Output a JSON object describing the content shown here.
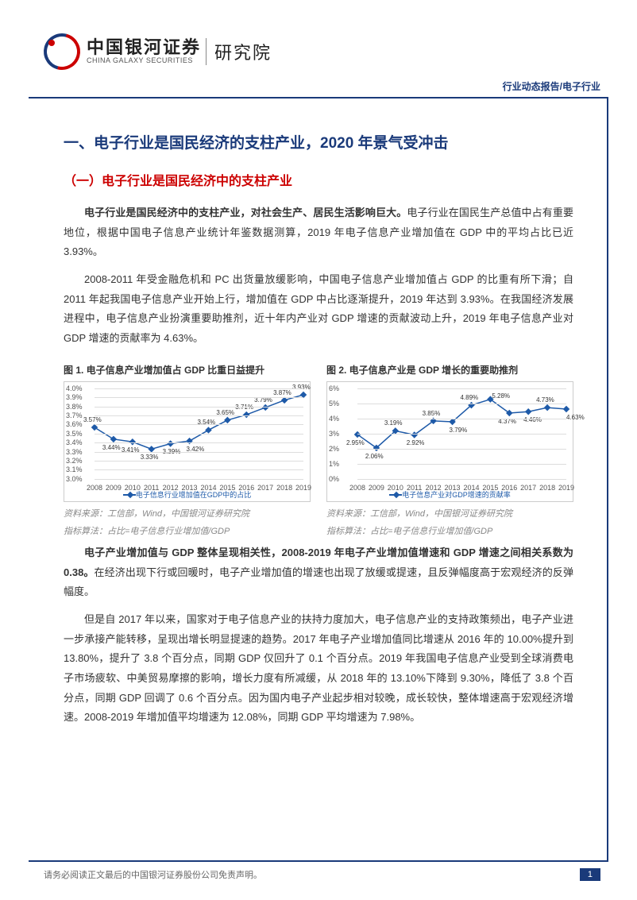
{
  "header": {
    "brand_cn": "中国银河证券",
    "brand_en": "CHINA GALAXY SECURITIES",
    "brand_suffix": "研究院",
    "breadcrumb": "行业动态报告/电子行业"
  },
  "section": {
    "h1": "一、电子行业是国民经济的支柱产业，2020 年景气受冲击",
    "h2": "（一）电子行业是国民经济中的支柱产业",
    "p1_bold": "电子行业是国民经济中的支柱产业，对社会生产、居民生活影响巨大。",
    "p1_rest": "电子行业在国民生产总值中占有重要地位，根据中国电子信息产业统计年鉴数据测算，2019 年电子信息产业增加值在 GDP 中的平均占比已近 3.93%。",
    "p2": "2008-2011 年受金融危机和 PC 出货量放缓影响，中国电子信息产业增加值占 GDP 的比重有所下滑；自 2011 年起我国电子信息产业开始上行，增加值在 GDP 中占比逐渐提升，2019 年达到 3.93%。在我国经济发展进程中，电子信息产业扮演重要助推剂，近十年内产业对 GDP 增速的贡献波动上升，2019 年电子信息产业对 GDP 增速的贡献率为 4.63%。",
    "p3_bold": "电子产业增加值与 GDP 整体呈现相关性，2008-2019 年电子产业增加值增速和 GDP 增速之间相关系数为 0.38。",
    "p3_rest": "在经济出现下行或回暖时，电子产业增加值的增速也出现了放缓或提速，且反弹幅度高于宏观经济的反弹幅度。",
    "p4": "但是自 2017 年以来，国家对于电子信息产业的扶持力度加大，电子信息产业的支持政策频出，电子产业进一步承接产能转移，呈现出增长明显提速的趋势。2017 年电子产业增加值同比增速从 2016 年的 10.00%提升到 13.80%，提升了 3.8 个百分点，同期 GDP 仅回升了 0.1 个百分点。2019 年我国电子信息产业受到全球消费电子市场疲软、中美贸易摩擦的影响，增长力度有所减缓，从 2018 年的 13.10%下降到 9.30%，降低了 3.8 个百分点，同期 GDP 回调了 0.6 个百分点。因为国内电子产业起步相对较晚，成长较快，整体增速高于宏观经济增速。2008-2019 年增加值平均增速为 12.08%，同期 GDP 平均增速为 7.98%。"
  },
  "chart1": {
    "title": "图 1. 电子信息产业增加值占 GDP 比重日益提升",
    "type": "line",
    "x": [
      "2008",
      "2009",
      "2010",
      "2011",
      "2012",
      "2013",
      "2014",
      "2015",
      "2016",
      "2017",
      "2018",
      "2019"
    ],
    "y": [
      3.57,
      3.44,
      3.41,
      3.33,
      3.39,
      3.42,
      3.54,
      3.65,
      3.71,
      3.79,
      3.87,
      3.93
    ],
    "labels": [
      "3.57%",
      "3.44%",
      "3.41%",
      "3.33%",
      "3.39%",
      "3.42%",
      "3.54%",
      "3.65%",
      "3.71%",
      "3.79%",
      "3.87%",
      "3.93%"
    ],
    "ylim": [
      3.0,
      4.0
    ],
    "yticks": [
      "3.0%",
      "3.1%",
      "3.2%",
      "3.3%",
      "3.4%",
      "3.5%",
      "3.6%",
      "3.7%",
      "3.8%",
      "3.9%",
      "4.0%"
    ],
    "line_color": "#1e5aa8",
    "marker": "diamond",
    "background_color": "#ffffff",
    "grid_color": "#dddddd",
    "legend": "电子信息行业增加值在GDP中的占比",
    "source": "资料来源：工信部，Wind，中国银河证券研究院",
    "note": "指标算法：占比=电子信息行业增加值/GDP"
  },
  "chart2": {
    "title": "图 2. 电子信息产业是 GDP 增长的重要助推剂",
    "type": "line",
    "x": [
      "2008",
      "2009",
      "2010",
      "2011",
      "2012",
      "2013",
      "2014",
      "2015",
      "2016",
      "2017",
      "2018",
      "2019"
    ],
    "y": [
      2.95,
      2.06,
      3.19,
      2.92,
      3.85,
      3.79,
      4.89,
      5.28,
      4.37,
      4.46,
      4.73,
      4.63
    ],
    "labels": [
      "2.95%",
      "2.06%",
      "3.19%",
      "2.92%",
      "3.85%",
      "3.79%",
      "4.89%",
      "5.28%",
      "4.37%",
      "4.46%",
      "4.73%",
      "4.63%"
    ],
    "ylim": [
      0,
      6
    ],
    "yticks": [
      "0%",
      "1%",
      "2%",
      "3%",
      "4%",
      "5%",
      "6%"
    ],
    "line_color": "#1e5aa8",
    "marker": "diamond",
    "background_color": "#ffffff",
    "grid_color": "#dddddd",
    "legend": "电子信息产业对GDP增速的贡献率",
    "source": "资料来源：工信部，Wind，中国银河证券研究院",
    "note": "指标算法：占比=电子信息行业增加值/GDP"
  },
  "footer": {
    "disclaimer": "请务必阅读正文最后的中国银河证券股份公司免责声明。",
    "page": "1"
  }
}
